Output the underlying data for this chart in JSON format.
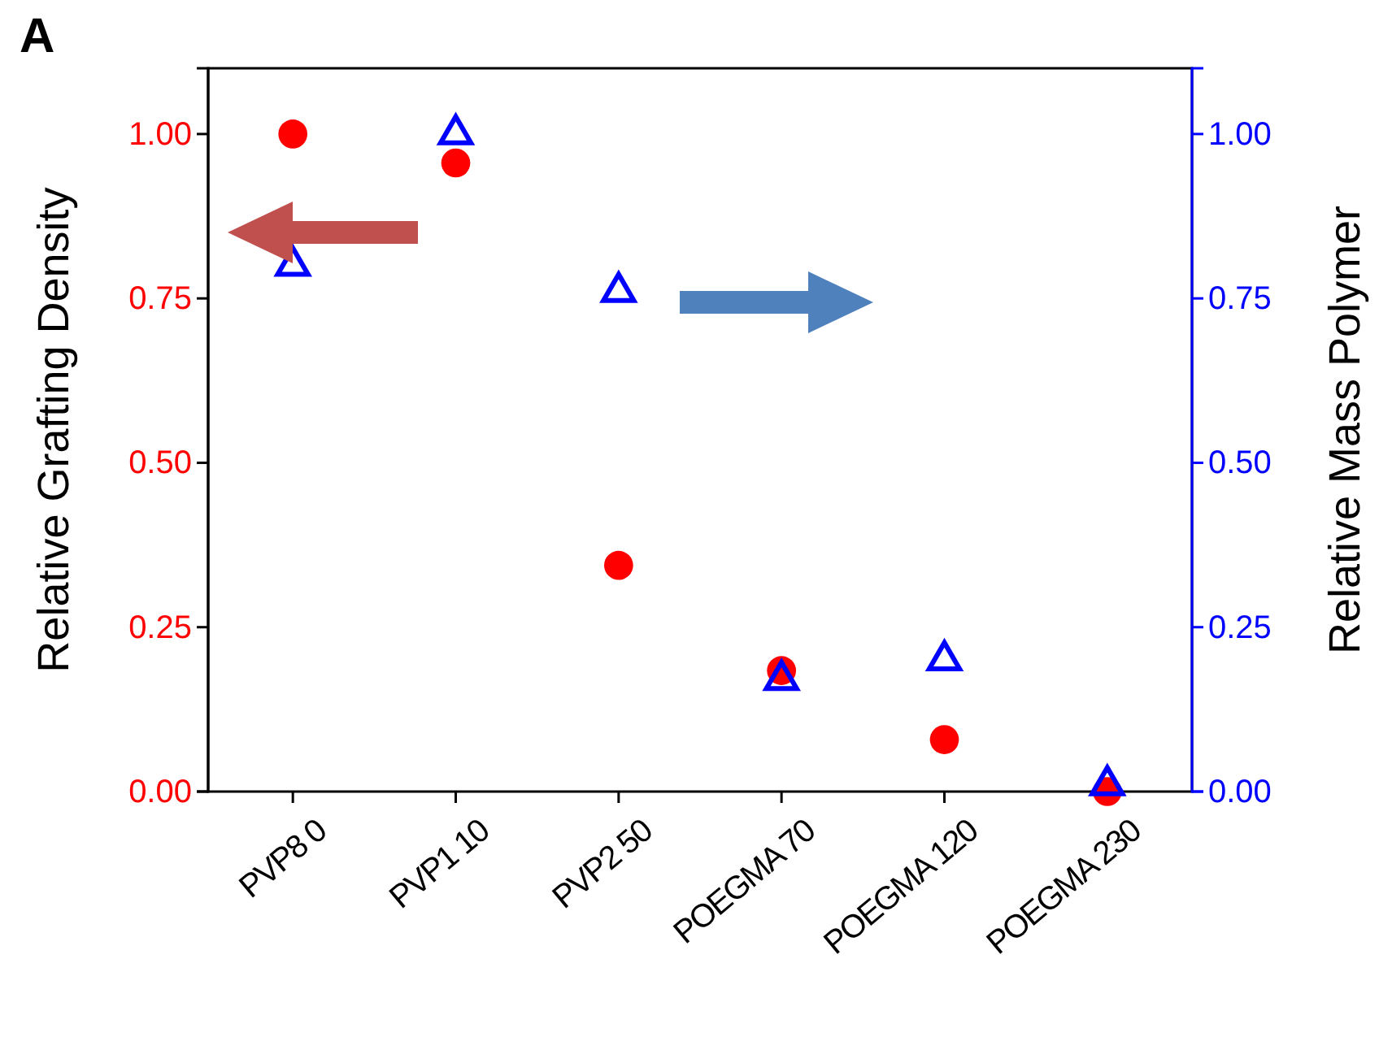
{
  "chart_data": {
    "type": "scatter",
    "categories": [
      "PVP8 0",
      "PVP1 10",
      "PVP2 50",
      "POEGMA 70",
      "POEGMA 120",
      "POEGMA 230"
    ],
    "ylabel": "Relative Grafting Density",
    "y2label": "Relative Mass Polymer",
    "ylim": [
      0,
      1.1
    ],
    "yticks": [
      {
        "value": 0,
        "label": "0.00"
      },
      {
        "value": 0.25,
        "label": "0.25"
      },
      {
        "value": 0.5,
        "label": "0.50"
      },
      {
        "value": 0.75,
        "label": "0.75"
      },
      {
        "value": 1,
        "label": "1.00"
      }
    ],
    "y2lim": [
      0,
      1.1
    ],
    "y2ticks": [
      {
        "value": 0,
        "label": "0.00"
      },
      {
        "value": 0.25,
        "label": "0.25"
      },
      {
        "value": 0.5,
        "label": "0.50"
      },
      {
        "value": 0.75,
        "label": "0.75"
      },
      {
        "value": 1,
        "label": "1.00"
      }
    ],
    "grid": false,
    "annotations": [
      "A"
    ],
    "series": [
      {
        "color": "#ff0000",
        "marker": "circle",
        "values": [
          1.0,
          0.956,
          0.344,
          0.184,
          0.079,
          0.0
        ]
      },
      {
        "color": "#0000ff",
        "marker": "triangle",
        "axis": "y2",
        "values": [
          0.8,
          1.0,
          0.76,
          0.17,
          0.2,
          0.01
        ]
      }
    ]
  }
}
